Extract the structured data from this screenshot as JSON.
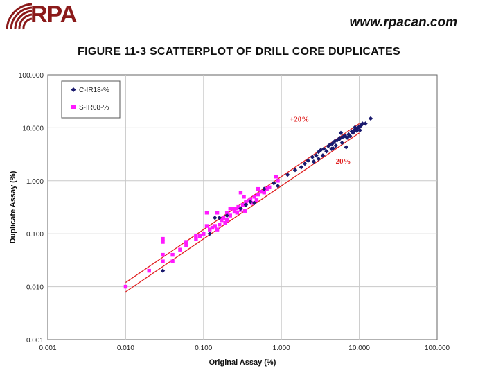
{
  "header": {
    "logo_text": "RPA",
    "website": "www.rpacan.com"
  },
  "figure_title": "FIGURE 11-3   SCATTERPLOT OF DRILL CORE DUPLICATES",
  "colors": {
    "brand": "#8b1a1a",
    "series1": "#1a1a6e",
    "series2": "#ff1aff",
    "bound_lines": "#e02020"
  },
  "chart_data": {
    "type": "scatter",
    "title": "FIGURE 11-3   SCATTERPLOT OF DRILL CORE DUPLICATES",
    "xlabel": "Original Assay (%)",
    "ylabel": "Duplicate Assay (%)",
    "xscale": "log",
    "yscale": "log",
    "xlim": [
      0.001,
      100
    ],
    "ylim": [
      0.001,
      100
    ],
    "ticks": [
      0.001,
      0.01,
      0.1,
      1,
      10,
      100
    ],
    "tick_labels": [
      "0.001",
      "0.010",
      "0.100",
      "1.000",
      "10.000",
      "100.000"
    ],
    "grid": true,
    "legend_position": "top-left",
    "annotations": [
      {
        "text": "+20%",
        "x": 1.7,
        "y": 13
      },
      {
        "text": "-20%",
        "x": 6.0,
        "y": 2.1
      }
    ],
    "bound_lines": [
      {
        "name": "+20%",
        "x": [
          0.01,
          10
        ],
        "y": [
          0.012,
          12
        ]
      },
      {
        "name": "-20%",
        "x": [
          0.01,
          10
        ],
        "y": [
          0.008,
          8
        ]
      }
    ],
    "series": [
      {
        "name": "C-IR18-%",
        "marker": "diamond",
        "points": [
          [
            0.03,
            0.02
          ],
          [
            0.12,
            0.1
          ],
          [
            0.14,
            0.2
          ],
          [
            0.16,
            0.2
          ],
          [
            0.2,
            0.22
          ],
          [
            0.3,
            0.3
          ],
          [
            0.35,
            0.35
          ],
          [
            0.4,
            0.4
          ],
          [
            0.45,
            0.38
          ],
          [
            0.6,
            0.7
          ],
          [
            0.8,
            0.9
          ],
          [
            0.9,
            0.8
          ],
          [
            1.2,
            1.3
          ],
          [
            1.5,
            1.6
          ],
          [
            1.8,
            1.8
          ],
          [
            2.0,
            2.1
          ],
          [
            2.2,
            2.4
          ],
          [
            2.5,
            2.8
          ],
          [
            2.8,
            3.0
          ],
          [
            3.0,
            3.5
          ],
          [
            3.2,
            3.8
          ],
          [
            3.5,
            4.0
          ],
          [
            3.8,
            3.6
          ],
          [
            4.0,
            4.5
          ],
          [
            4.2,
            4.8
          ],
          [
            4.5,
            5.0
          ],
          [
            4.8,
            5.5
          ],
          [
            5.0,
            4.6
          ],
          [
            5.2,
            5.8
          ],
          [
            5.5,
            6.0
          ],
          [
            5.8,
            8.0
          ],
          [
            6.0,
            5.2
          ],
          [
            6.3,
            6.8
          ],
          [
            6.6,
            7.0
          ],
          [
            7.0,
            6.5
          ],
          [
            7.3,
            7.5
          ],
          [
            7.6,
            7.0
          ],
          [
            8.0,
            8.5
          ],
          [
            8.3,
            8.0
          ],
          [
            8.6,
            9.0
          ],
          [
            9.0,
            9.5
          ],
          [
            9.3,
            8.8
          ],
          [
            9.6,
            10.0
          ],
          [
            10.0,
            10.5
          ],
          [
            10.5,
            11.0
          ],
          [
            11.0,
            12.0
          ],
          [
            12.0,
            12.0
          ],
          [
            14.0,
            15.0
          ],
          [
            2.6,
            2.3
          ],
          [
            3.4,
            3.0
          ],
          [
            4.4,
            4.0
          ],
          [
            6.8,
            4.3
          ],
          [
            5.6,
            6.4
          ],
          [
            8.8,
            10.2
          ],
          [
            3.0,
            2.6
          ],
          [
            10.2,
            9.0
          ],
          [
            6.0,
            6.6
          ],
          [
            4.6,
            4.1
          ]
        ]
      },
      {
        "name": "S-IR08-%",
        "marker": "square",
        "points": [
          [
            0.01,
            0.01
          ],
          [
            0.02,
            0.02
          ],
          [
            0.03,
            0.08
          ],
          [
            0.03,
            0.07
          ],
          [
            0.03,
            0.04
          ],
          [
            0.03,
            0.03
          ],
          [
            0.04,
            0.04
          ],
          [
            0.04,
            0.03
          ],
          [
            0.05,
            0.05
          ],
          [
            0.06,
            0.07
          ],
          [
            0.06,
            0.06
          ],
          [
            0.08,
            0.08
          ],
          [
            0.09,
            0.09
          ],
          [
            0.1,
            0.1
          ],
          [
            0.11,
            0.25
          ],
          [
            0.11,
            0.14
          ],
          [
            0.12,
            0.12
          ],
          [
            0.13,
            0.13
          ],
          [
            0.14,
            0.14
          ],
          [
            0.15,
            0.25
          ],
          [
            0.16,
            0.15
          ],
          [
            0.17,
            0.18
          ],
          [
            0.18,
            0.2
          ],
          [
            0.2,
            0.25
          ],
          [
            0.2,
            0.18
          ],
          [
            0.22,
            0.22
          ],
          [
            0.24,
            0.3
          ],
          [
            0.25,
            0.26
          ],
          [
            0.27,
            0.25
          ],
          [
            0.28,
            0.32
          ],
          [
            0.3,
            0.6
          ],
          [
            0.3,
            0.28
          ],
          [
            0.32,
            0.35
          ],
          [
            0.35,
            0.4
          ],
          [
            0.38,
            0.42
          ],
          [
            0.4,
            0.45
          ],
          [
            0.45,
            0.5
          ],
          [
            0.5,
            0.7
          ],
          [
            0.5,
            0.55
          ],
          [
            0.6,
            0.6
          ],
          [
            0.65,
            0.7
          ],
          [
            0.7,
            0.75
          ],
          [
            0.85,
            1.2
          ],
          [
            0.9,
            1.0
          ],
          [
            0.26,
            0.3
          ],
          [
            0.19,
            0.16
          ],
          [
            0.34,
            0.27
          ],
          [
            0.42,
            0.38
          ],
          [
            0.55,
            0.62
          ],
          [
            0.15,
            0.12
          ],
          [
            0.22,
            0.3
          ],
          [
            0.08,
            0.09
          ],
          [
            0.33,
            0.5
          ],
          [
            0.48,
            0.43
          ]
        ]
      }
    ]
  }
}
